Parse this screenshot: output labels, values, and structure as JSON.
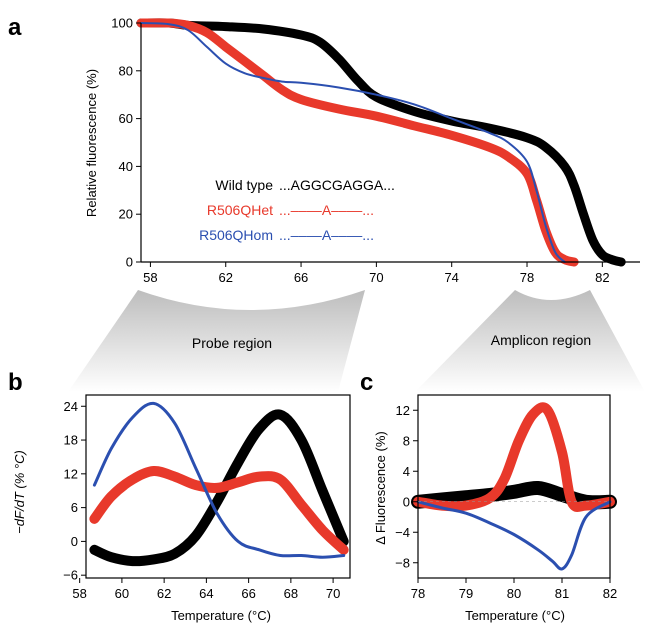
{
  "panels": {
    "a": "a",
    "b": "b",
    "c": "c"
  },
  "colors": {
    "wild_type": "#000000",
    "het": "#e8392b",
    "hom": "#2b4fb0"
  },
  "regions": {
    "probe": "Probe region",
    "amplicon": "Amplicon region"
  },
  "legend": [
    {
      "name": "Wild type",
      "seq": "...AGGCGAGGA...",
      "color": "#000000"
    },
    {
      "name": "R506QHet",
      "seq": "...––––A––––...",
      "color": "#e8392b"
    },
    {
      "name": "R506QHom",
      "seq": "...––––A––––...",
      "color": "#2b4fb0"
    }
  ],
  "chart_data": [
    {
      "id": "a",
      "type": "line",
      "title": "",
      "xlabel": "",
      "ylabel": "Relative fluorescence (%)",
      "xlim": [
        57.5,
        84
      ],
      "ylim": [
        0,
        100
      ],
      "xticks": [
        58,
        62,
        66,
        70,
        74,
        78,
        82
      ],
      "yticks": [
        0,
        20,
        40,
        60,
        80,
        100
      ],
      "series": [
        {
          "name": "Wild type",
          "color": "#000000",
          "width": 9,
          "x": [
            57.5,
            59,
            60,
            62,
            64,
            66,
            67,
            68,
            69,
            70,
            72,
            74,
            76,
            78,
            79,
            80,
            80.5,
            81,
            81.5,
            82,
            82.5,
            83
          ],
          "y": [
            100,
            100,
            99,
            98.5,
            97.5,
            95,
            92,
            85,
            76,
            69,
            63,
            59,
            56,
            52,
            48,
            40,
            32,
            20,
            9,
            3,
            1,
            0
          ]
        },
        {
          "name": "R506QHet",
          "color": "#e8392b",
          "width": 9,
          "x": [
            57.5,
            59,
            60,
            61,
            62,
            63,
            64,
            65,
            66,
            68,
            70,
            72,
            74,
            76,
            77,
            78,
            78.5,
            79,
            79.5,
            80,
            80.5
          ],
          "y": [
            100,
            100,
            99,
            96,
            90,
            84,
            78,
            72,
            68,
            64,
            61,
            57,
            53,
            48,
            44,
            37,
            26,
            13,
            4,
            1,
            0
          ]
        },
        {
          "name": "R506QHom",
          "color": "#2b4fb0",
          "width": 2,
          "x": [
            57.5,
            59,
            60,
            61,
            62,
            63,
            64,
            65,
            66,
            68,
            70,
            72,
            74,
            76,
            77,
            78,
            78.5,
            79,
            79.5,
            80
          ],
          "y": [
            100,
            99.5,
            97,
            90,
            83,
            79,
            77,
            75.5,
            75,
            73,
            70,
            66,
            60,
            54,
            50,
            42,
            30,
            15,
            4,
            0
          ]
        }
      ]
    },
    {
      "id": "b",
      "type": "line",
      "title": "",
      "xlabel": "Temperature (°C)",
      "ylabel": "−dF/dT (% °C)",
      "xlim": [
        58.3,
        70.8
      ],
      "ylim": [
        -6.5,
        26
      ],
      "xticks": [
        58,
        60,
        62,
        64,
        66,
        68,
        70
      ],
      "yticks": [
        -6,
        0,
        6,
        12,
        18,
        24
      ],
      "series": [
        {
          "name": "Wild type",
          "color": "#000000",
          "width": 10,
          "x": [
            58.7,
            59.5,
            60.5,
            61.5,
            62.5,
            63.5,
            64.5,
            65.5,
            66.5,
            67.5,
            68.5,
            69.5,
            70.5
          ],
          "y": [
            -1.5,
            -2.8,
            -3.5,
            -3.2,
            -2.2,
            1,
            7,
            14,
            20,
            22.5,
            18,
            9,
            0
          ]
        },
        {
          "name": "R506QHet",
          "color": "#e8392b",
          "width": 10,
          "x": [
            58.7,
            59.5,
            60.5,
            61.5,
            62.5,
            63.5,
            64.5,
            65.5,
            66.5,
            67.5,
            68.5,
            69.5,
            70.5
          ],
          "y": [
            4,
            8,
            11,
            12.5,
            11.5,
            10,
            9.5,
            10.5,
            11.5,
            11,
            6.5,
            2,
            -1.5
          ]
        },
        {
          "name": "R506QHom",
          "color": "#2b4fb0",
          "width": 3,
          "x": [
            58.7,
            59.5,
            60.5,
            61.5,
            62.5,
            63.5,
            64.5,
            65.5,
            66.5,
            67.5,
            68.5,
            69.5,
            70.5
          ],
          "y": [
            10,
            16.5,
            22,
            24.5,
            21,
            13,
            5,
            0,
            -1.5,
            -2.5,
            -2.5,
            -2.8,
            -2.5
          ]
        }
      ]
    },
    {
      "id": "c",
      "type": "line",
      "title": "",
      "xlabel": "Temperature (°C)",
      "ylabel": "Δ Fluorescence (%)",
      "xlim": [
        78,
        82
      ],
      "ylim": [
        -10,
        14
      ],
      "xticks": [
        78,
        79,
        80,
        81,
        82
      ],
      "yticks": [
        -8,
        -4,
        0,
        4,
        8,
        12
      ],
      "series": [
        {
          "name": "Wild type",
          "color": "#000000",
          "width": 14,
          "x": [
            78,
            78.5,
            79,
            79.5,
            80,
            80.5,
            81,
            81.5,
            82
          ],
          "y": [
            0,
            0.3,
            0.6,
            0.9,
            1.3,
            1.8,
            0.9,
            0,
            0
          ]
        },
        {
          "name": "R506QHet",
          "color": "#e8392b",
          "width": 10,
          "x": [
            78,
            78.5,
            79,
            79.5,
            79.8,
            80.1,
            80.4,
            80.7,
            81,
            81.2,
            81.5,
            82
          ],
          "y": [
            0,
            -0.5,
            -0.5,
            0.5,
            3,
            8,
            11.5,
            12,
            6.5,
            0,
            -0.5,
            0
          ]
        },
        {
          "name": "R506QHom",
          "color": "#2b4fb0",
          "width": 3,
          "x": [
            78,
            78.5,
            79,
            79.5,
            80,
            80.5,
            80.8,
            81,
            81.2,
            81.5,
            82
          ],
          "y": [
            0,
            -0.8,
            -1.5,
            -2.8,
            -4.3,
            -6.3,
            -7.8,
            -8.8,
            -7,
            -2,
            0
          ]
        }
      ]
    }
  ]
}
